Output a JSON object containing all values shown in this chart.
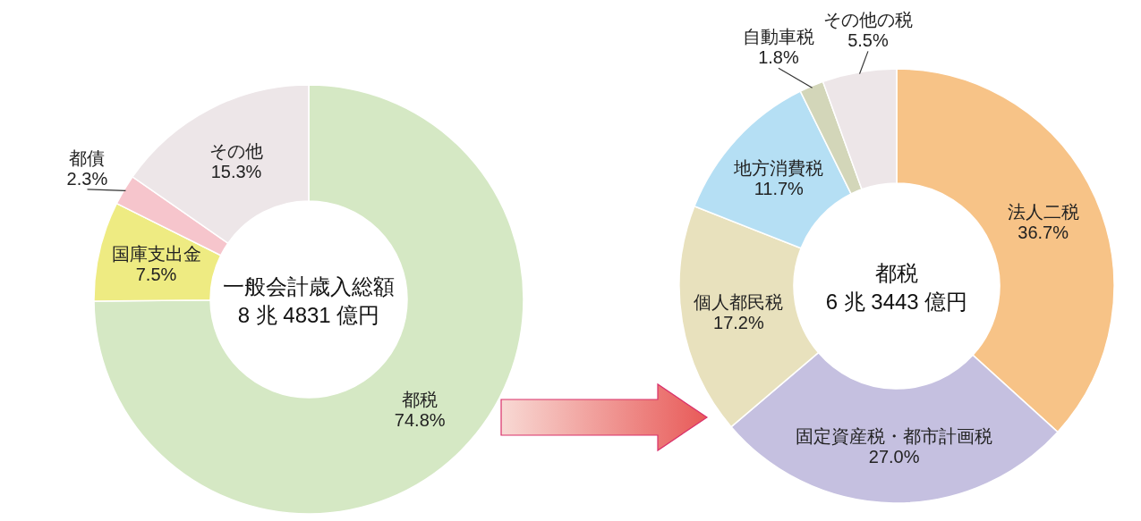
{
  "chart_data": [
    {
      "type": "donut",
      "title": "一般会計歳入総額",
      "subtitle": "8 兆 4831 億円",
      "categories": [
        "都税",
        "国庫支出金",
        "都債",
        "その他"
      ],
      "values": [
        74.8,
        7.5,
        2.3,
        15.3
      ],
      "value_labels": [
        "74.8%",
        "7.5%",
        "2.3%",
        "15.3%"
      ],
      "colors": [
        "#d5e8c4",
        "#eeeb82",
        "#f6c5cc",
        "#ede6e8"
      ]
    },
    {
      "type": "donut",
      "title": "都税",
      "subtitle": "6 兆 3443 億円",
      "categories": [
        "法人二税",
        "固定資産税・都市計画税",
        "個人都民税",
        "地方消費税",
        "自動車税",
        "その他の税"
      ],
      "values": [
        36.7,
        27.0,
        17.2,
        11.7,
        1.8,
        5.5
      ],
      "value_labels": [
        "36.7%",
        "27.0%",
        "17.2%",
        "11.7%",
        "1.8%",
        "5.5%"
      ],
      "colors": [
        "#f7c387",
        "#c5c0e0",
        "#e8e1bd",
        "#b5dff4",
        "#d3d6b9",
        "#ede6e8"
      ]
    }
  ]
}
